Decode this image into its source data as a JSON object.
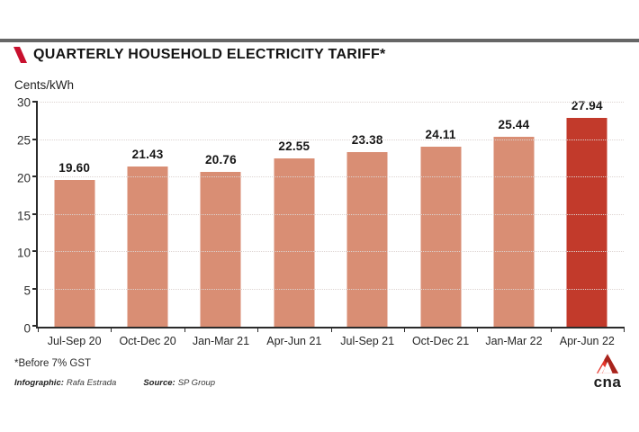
{
  "page": {
    "title": "QUARTERLY HOUSEHOLD ELECTRICITY TARIFF*",
    "units_label": "Cents/kWh",
    "footnote": "*Before 7% GST",
    "credits": {
      "infographic_label": "Infographic:",
      "infographic_value": "Rafa Estrada",
      "source_label": "Source:",
      "source_value": "SP Group"
    },
    "logo_text": "cna"
  },
  "colors": {
    "bar": "#d98e74",
    "bar_highlight": "#c23a2b",
    "accent_red": "#c8102e",
    "top_rule": "#666666",
    "grid": "#dcd3d0",
    "axis": "#2b2b2b"
  },
  "chart_data": {
    "type": "bar",
    "title": "QUARTERLY HOUSEHOLD ELECTRICITY TARIFF*",
    "ylabel": "Cents/kWh",
    "xlabel": "",
    "categories": [
      "Jul-Sep 20",
      "Oct-Dec 20",
      "Jan-Mar 21",
      "Apr-Jun 21",
      "Jul-Sep 21",
      "Oct-Dec 21",
      "Jan-Mar 22",
      "Apr-Jun 22"
    ],
    "values": [
      19.6,
      21.43,
      20.76,
      22.55,
      23.38,
      24.11,
      25.44,
      27.94
    ],
    "value_labels": [
      "19.60",
      "21.43",
      "20.76",
      "22.55",
      "23.38",
      "24.11",
      "25.44",
      "27.94"
    ],
    "highlight_index": 7,
    "ylim": [
      0,
      30
    ],
    "yticks": [
      0,
      5,
      10,
      15,
      20,
      25,
      30
    ],
    "grid": true,
    "legend": false
  }
}
